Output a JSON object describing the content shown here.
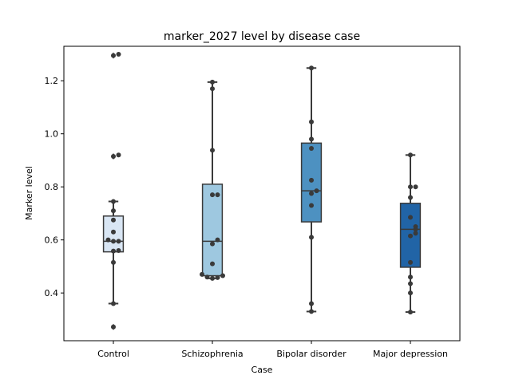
{
  "chart_data": {
    "type": "box",
    "title": "marker_2027 level by disease case",
    "xlabel": "Case",
    "ylabel": "Marker level",
    "ylim": [
      0.22,
      1.33
    ],
    "yticks": [
      0.4,
      0.6,
      0.8,
      1.0,
      1.2
    ],
    "ytick_labels": [
      "0.4",
      "0.6",
      "0.8",
      "1.0",
      "1.2"
    ],
    "grid": false,
    "categories": [
      "Control",
      "Schizophrenia",
      "Bipolar disorder",
      "Major depression"
    ],
    "box_colors": [
      "#d9e6f4",
      "#9ec8e0",
      "#4d91c1",
      "#2164a6"
    ],
    "boxes": [
      {
        "category": "Control",
        "whisker_low": 0.36,
        "q1": 0.555,
        "median": 0.595,
        "q3": 0.69,
        "whisker_high": 0.745,
        "outliers": [
          0.272,
          0.915,
          1.295
        ]
      },
      {
        "category": "Schizophrenia",
        "whisker_low": 0.455,
        "q1": 0.465,
        "median": 0.595,
        "q3": 0.81,
        "whisker_high": 1.195,
        "outliers": []
      },
      {
        "category": "Bipolar disorder",
        "whisker_low": 0.33,
        "q1": 0.668,
        "median": 0.785,
        "q3": 0.965,
        "whisker_high": 1.248,
        "outliers": []
      },
      {
        "category": "Major depression",
        "whisker_low": 0.328,
        "q1": 0.497,
        "median": 0.64,
        "q3": 0.738,
        "whisker_high": 0.92,
        "outliers": []
      }
    ],
    "points": [
      [
        0.272,
        0.36,
        0.515,
        0.558,
        0.56,
        0.595,
        0.595,
        0.6,
        0.63,
        0.675,
        0.71,
        0.745,
        0.915,
        0.92,
        1.295,
        1.3
      ],
      [
        0.455,
        0.458,
        0.46,
        0.465,
        0.47,
        0.51,
        0.585,
        0.6,
        0.77,
        0.77,
        0.938,
        1.17,
        1.195
      ],
      [
        0.33,
        0.36,
        0.61,
        0.73,
        0.775,
        0.785,
        0.825,
        0.945,
        0.98,
        1.045,
        1.248
      ],
      [
        0.328,
        0.4,
        0.435,
        0.46,
        0.515,
        0.615,
        0.625,
        0.64,
        0.65,
        0.685,
        0.76,
        0.8,
        0.8,
        0.92
      ]
    ]
  }
}
